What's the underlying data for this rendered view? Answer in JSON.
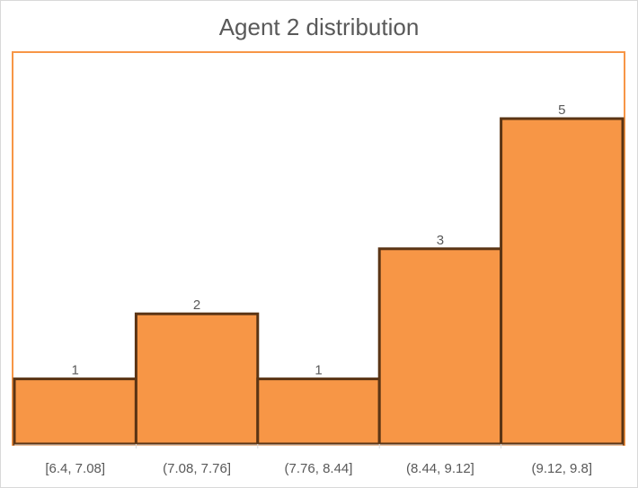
{
  "colors": {
    "bar_fill": "#f79646",
    "bar_stroke": "#5a3414",
    "plot_border": "#f79646",
    "text": "#595959",
    "axis": "#d9d9d9"
  },
  "chart_data": {
    "type": "bar",
    "title": "Agent 2 distribution",
    "categories": [
      "[6.4, 7.08]",
      "(7.08, 7.76]",
      "(7.76, 8.44]",
      "(8.44, 9.12]",
      "(9.12, 9.8]"
    ],
    "values": [
      1,
      2,
      1,
      3,
      5
    ],
    "ylim": [
      0,
      5
    ],
    "xlabel": "",
    "ylabel": "",
    "grid": false,
    "data_labels": true,
    "legend": "none"
  }
}
